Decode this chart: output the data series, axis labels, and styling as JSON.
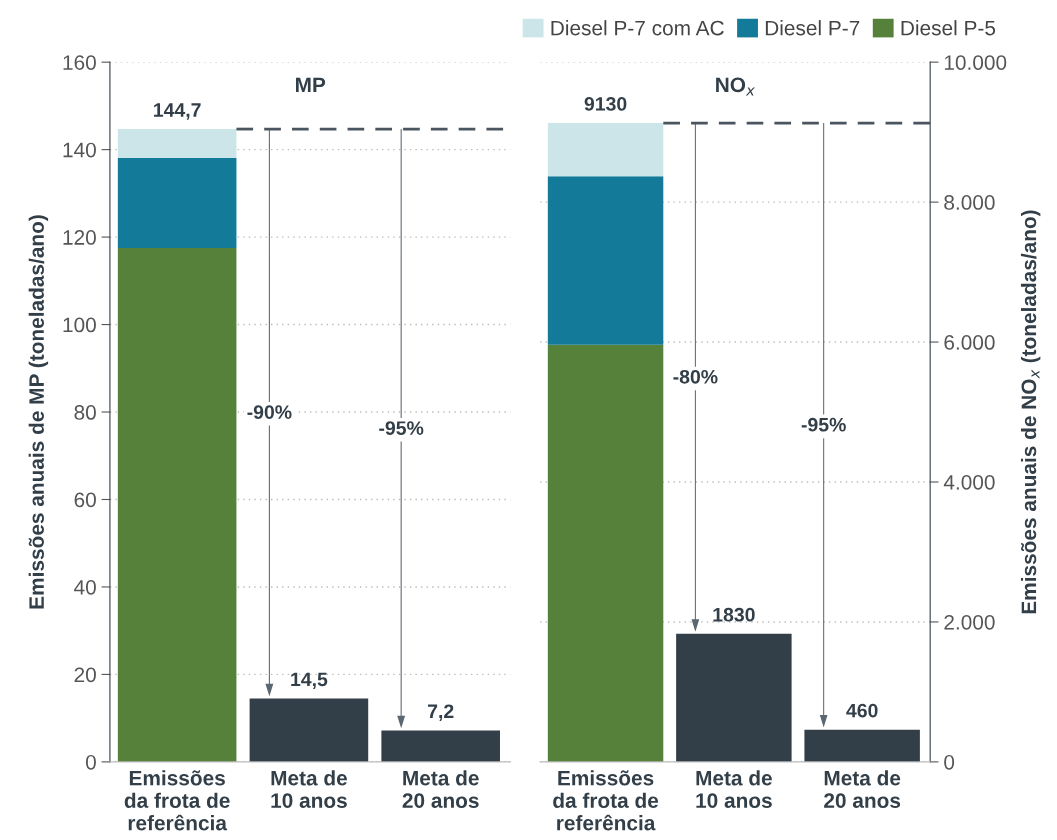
{
  "chart_data": [
    {
      "type": "bar",
      "title": "MP",
      "ylabel": "Emissões anuais de MP (toneladas/ano)",
      "categories": [
        "Emissões\nda frota de\nreferência",
        "Meta de\n10 anos",
        "Meta de\n20 anos"
      ],
      "stacked": true,
      "series": [
        {
          "name": "Diesel P-5",
          "color": "#56813a",
          "values": [
            117.5,
            null,
            null
          ]
        },
        {
          "name": "Diesel P-7",
          "color": "#137a9a",
          "values": [
            20.6,
            null,
            null
          ]
        },
        {
          "name": "Diesel P-7 com AC",
          "color": "#cce5e8",
          "values": [
            6.6,
            null,
            null
          ]
        },
        {
          "color": "#333f48",
          "values": [
            null,
            14.5,
            7.2
          ]
        }
      ],
      "totals": [
        "144,7",
        "14,5",
        "7,2"
      ],
      "ylim": [
        0,
        160
      ],
      "yticks": [
        0,
        20,
        40,
        60,
        80,
        100,
        120,
        140,
        160
      ],
      "grid": "y",
      "legend": "top right",
      "ref_lines": [
        {
          "axis": "y",
          "value": 144.7,
          "color": "#4a5560",
          "line_style": "dashed"
        }
      ],
      "annotations": [
        "-90%",
        "-95%"
      ]
    },
    {
      "type": "bar",
      "title": "NO$_{x}$",
      "y2label": "Emissões anuais de NO$_{x}$ (toneladas/ano)",
      "categories": [
        "Emissões\nda frota de\nreferência",
        "Meta de\n10 anos",
        "Meta de\n20 anos"
      ],
      "stacked": true,
      "series": [
        {
          "name": "Diesel P-5",
          "color": "#56813a",
          "values": [
            5960,
            null,
            null
          ],
          "axis": "y2"
        },
        {
          "name": "Diesel P-7",
          "color": "#137a9a",
          "values": [
            2410,
            null,
            null
          ],
          "axis": "y2"
        },
        {
          "name": "Diesel P-7 com AC",
          "color": "#cce5e8",
          "values": [
            760,
            null,
            null
          ],
          "axis": "y2"
        },
        {
          "color": "#333f48",
          "values": [
            null,
            1830,
            460
          ],
          "axis": "y2"
        }
      ],
      "totals": [
        "9130",
        "1830",
        "460"
      ],
      "y2lim": [
        0,
        10000
      ],
      "y2ticks": [
        0,
        {
          "value": 2000,
          "label": "2.000"
        },
        {
          "value": 4000,
          "label": "4.000"
        },
        {
          "value": 6000,
          "label": "6.000"
        },
        {
          "value": 8000,
          "label": "8.000"
        },
        {
          "value": 10000,
          "label": "10.000"
        }
      ],
      "grid": "y",
      "legend": "top right",
      "ref_lines": [
        {
          "axis": "y2",
          "value": 9130,
          "color": "#4a5560",
          "line_style": "dashed"
        }
      ],
      "annotations": [
        "-80%",
        "-95%"
      ]
    }
  ]
}
